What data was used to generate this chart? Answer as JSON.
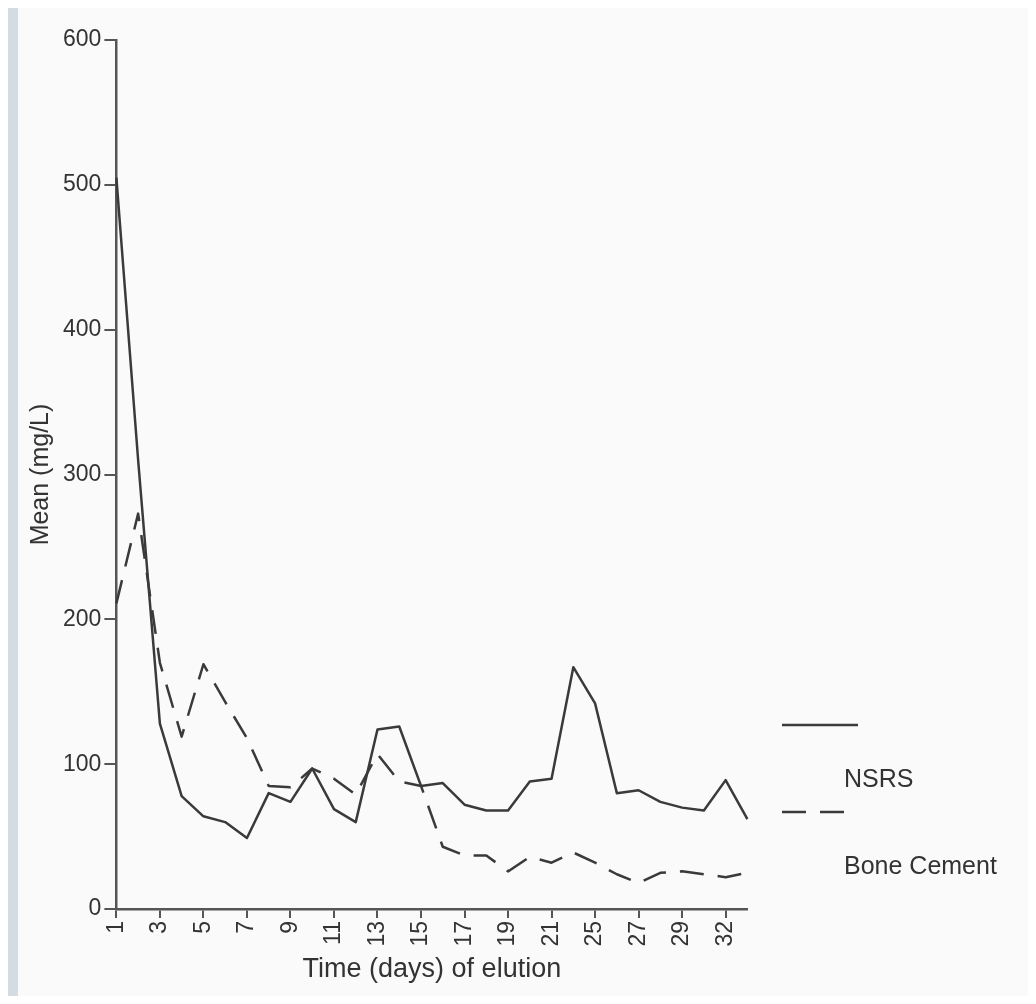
{
  "chart_data": {
    "type": "line",
    "xlabel": "Time (days) of elution",
    "ylabel": "Mean (mg/L)",
    "categories": [
      "1",
      null,
      "3",
      null,
      "5",
      null,
      "7",
      null,
      "9",
      null,
      "11",
      null,
      "13",
      null,
      "15",
      null,
      "17",
      null,
      "19",
      null,
      "21",
      null,
      "25",
      null,
      "27",
      null,
      "29",
      null,
      "32",
      null
    ],
    "series": [
      {
        "name": "NSRS",
        "color": "#3a3a3a",
        "line_style": "solid",
        "values": [
          505,
          310,
          128,
          78,
          64,
          60,
          49,
          80,
          74,
          97,
          69,
          60,
          124,
          126,
          85,
          87,
          72,
          68,
          68,
          88,
          90,
          167,
          142,
          80,
          82,
          74,
          70,
          68,
          89,
          62
        ]
      },
      {
        "name": "Bone Cement",
        "color": "#3a3a3a",
        "line_style": "dashed",
        "values": [
          211,
          273,
          170,
          119,
          169,
          143,
          118,
          85,
          84,
          97,
          90,
          79,
          107,
          88,
          85,
          43,
          37,
          37,
          26,
          36,
          32,
          39,
          32,
          24,
          18,
          25,
          26,
          24,
          22,
          25
        ]
      }
    ],
    "ylim": [
      0,
      600
    ],
    "yticks": [
      0,
      100,
      200,
      300,
      400,
      500,
      600
    ],
    "grid": false,
    "legend": "right",
    "marker": "none"
  }
}
